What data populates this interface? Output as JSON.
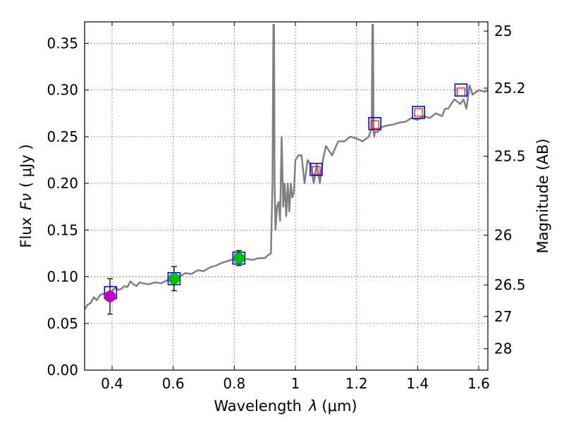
{
  "chart_data": {
    "type": "line",
    "title": "",
    "xlabel": "Wavelength",
    "xlabel_symbol": "λ",
    "xlabel_unit": "(μm)",
    "ylabel": "Flux",
    "ylabel_symbol": "Fν",
    "ylabel_unit": "( μJy )",
    "ylabel_right": "Magnitude (AB)",
    "xlim": [
      0.31,
      1.63
    ],
    "ylim": [
      0.0,
      0.373
    ],
    "grid": true,
    "x_ticks": [
      {
        "value": 0.4,
        "label": "0.4"
      },
      {
        "value": 0.6,
        "label": "0.6"
      },
      {
        "value": 0.8,
        "label": "0.8"
      },
      {
        "value": 1.0,
        "label": "1"
      },
      {
        "value": 1.2,
        "label": "1.2"
      },
      {
        "value": 1.4,
        "label": "1.4"
      },
      {
        "value": 1.6,
        "label": "1.6"
      }
    ],
    "y_ticks": [
      {
        "value": 0.0,
        "label": "0.00"
      },
      {
        "value": 0.05,
        "label": "0.05"
      },
      {
        "value": 0.1,
        "label": "0.10"
      },
      {
        "value": 0.15,
        "label": "0.15"
      },
      {
        "value": 0.2,
        "label": "0.20"
      },
      {
        "value": 0.25,
        "label": "0.25"
      },
      {
        "value": 0.3,
        "label": "0.30"
      },
      {
        "value": 0.35,
        "label": "0.35"
      }
    ],
    "right_ticks": [
      {
        "label": "25",
        "flux": 0.3631
      },
      {
        "label": "25.2",
        "flux": 0.302
      },
      {
        "label": "25.5",
        "flux": 0.2291
      },
      {
        "label": "26",
        "flux": 0.1445
      },
      {
        "label": "26.5",
        "flux": 0.0912
      },
      {
        "label": "27",
        "flux": 0.0575
      },
      {
        "label": "28",
        "flux": 0.0229
      }
    ],
    "series": [
      {
        "name": "template spectrum",
        "color": "#808080",
        "x": [
          0.31,
          0.32,
          0.33,
          0.34,
          0.35,
          0.36,
          0.37,
          0.38,
          0.39,
          0.4,
          0.41,
          0.42,
          0.43,
          0.44,
          0.45,
          0.46,
          0.47,
          0.48,
          0.49,
          0.5,
          0.52,
          0.54,
          0.56,
          0.58,
          0.59,
          0.6,
          0.61,
          0.62,
          0.64,
          0.66,
          0.68,
          0.7,
          0.72,
          0.74,
          0.76,
          0.78,
          0.8,
          0.82,
          0.84,
          0.86,
          0.88,
          0.89,
          0.9,
          0.91,
          0.92,
          0.925,
          0.928,
          0.93,
          0.932,
          0.935,
          0.94,
          0.945,
          0.95,
          0.955,
          0.96,
          0.965,
          0.97,
          0.975,
          0.98,
          0.985,
          0.99,
          0.995,
          1.0,
          1.01,
          1.02,
          1.03,
          1.04,
          1.05,
          1.06,
          1.07,
          1.08,
          1.09,
          1.1,
          1.12,
          1.14,
          1.16,
          1.18,
          1.2,
          1.22,
          1.24,
          1.25,
          1.252,
          1.254,
          1.256,
          1.258,
          1.26,
          1.27,
          1.28,
          1.3,
          1.32,
          1.34,
          1.36,
          1.38,
          1.4,
          1.42,
          1.44,
          1.46,
          1.48,
          1.49,
          1.5,
          1.52,
          1.54,
          1.55,
          1.56,
          1.57,
          1.58,
          1.6,
          1.62,
          1.63
        ],
        "y": [
          0.065,
          0.07,
          0.072,
          0.078,
          0.075,
          0.08,
          0.082,
          0.079,
          0.083,
          0.085,
          0.088,
          0.086,
          0.087,
          0.09,
          0.089,
          0.095,
          0.092,
          0.09,
          0.094,
          0.093,
          0.092,
          0.094,
          0.093,
          0.096,
          0.1,
          0.095,
          0.098,
          0.1,
          0.104,
          0.103,
          0.107,
          0.106,
          0.11,
          0.112,
          0.115,
          0.117,
          0.119,
          0.12,
          0.119,
          0.118,
          0.12,
          0.12,
          0.12,
          0.123,
          0.125,
          0.2,
          0.37,
          0.37,
          0.2,
          0.15,
          0.175,
          0.18,
          0.16,
          0.25,
          0.175,
          0.2,
          0.165,
          0.2,
          0.17,
          0.2,
          0.185,
          0.19,
          0.225,
          0.23,
          0.23,
          0.2,
          0.225,
          0.22,
          0.2,
          0.22,
          0.2,
          0.225,
          0.24,
          0.23,
          0.245,
          0.245,
          0.25,
          0.248,
          0.245,
          0.25,
          0.26,
          0.37,
          0.37,
          0.255,
          0.25,
          0.255,
          0.255,
          0.26,
          0.262,
          0.263,
          0.265,
          0.266,
          0.27,
          0.268,
          0.272,
          0.27,
          0.275,
          0.272,
          0.28,
          0.28,
          0.29,
          0.285,
          0.29,
          0.28,
          0.305,
          0.295,
          0.3,
          0.298,
          0.3
        ]
      },
      {
        "name": "model photometry (blue squares)",
        "color": "#0000ff",
        "x": [
          0.395,
          0.603,
          0.815,
          1.068,
          1.26,
          1.403,
          1.542
        ],
        "y": [
          0.083,
          0.098,
          0.12,
          0.215,
          0.264,
          0.276,
          0.3
        ]
      },
      {
        "name": "model photometry (red squares)",
        "color": "#ff0000",
        "x": [
          1.068,
          1.26,
          1.403,
          1.542
        ],
        "y": [
          0.214,
          0.263,
          0.276,
          0.298
        ]
      },
      {
        "name": "observed photometry",
        "x": [
          0.393,
          0.603,
          0.815
        ],
        "y": [
          0.079,
          0.098,
          0.12
        ],
        "yerr": [
          0.019,
          0.013,
          0.008
        ],
        "colors": [
          "#bf00bf",
          "#00bf00",
          "#00bf00"
        ]
      }
    ]
  }
}
